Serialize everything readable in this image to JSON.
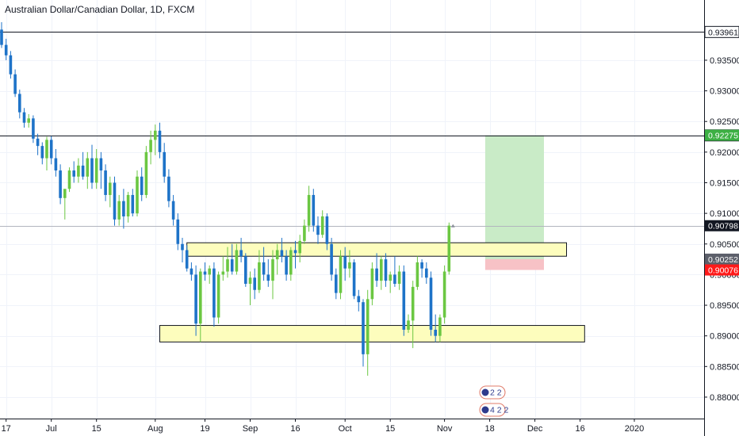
{
  "chart_data": {
    "type": "candlestick",
    "title": "Australian Dollar/Canadian Dollar, 1D, FXCM",
    "colors": {
      "up": "#6bc742",
      "down": "#1e73c8",
      "grid": "#f0f3fa",
      "axis": "#131722",
      "zone_fill": "#fdfdbd",
      "profit_fill": "#c9ebc7",
      "loss_fill": "#f7c2c6",
      "price_line": "#b2b5be"
    },
    "ylim": [
      0.8765,
      0.9425
    ],
    "y_ticks": [
      "0.93500",
      "0.93000",
      "0.92500",
      "0.92000",
      "0.91500",
      "0.91000",
      "0.90500",
      "0.90000",
      "0.89500",
      "0.89000",
      "0.88500",
      "0.88000"
    ],
    "x_ticks": [
      {
        "label": "17",
        "idx": 1
      },
      {
        "label": "Jul",
        "idx": 11
      },
      {
        "label": "15",
        "idx": 21
      },
      {
        "label": "Aug",
        "idx": 34
      },
      {
        "label": "19",
        "idx": 45
      },
      {
        "label": "Sep",
        "idx": 55
      },
      {
        "label": "16",
        "idx": 65
      },
      {
        "label": "Oct",
        "idx": 76
      },
      {
        "label": "15",
        "idx": 86
      },
      {
        "label": "Nov",
        "idx": 98
      },
      {
        "label": "18",
        "idx": 108
      },
      {
        "label": "Dec",
        "idx": 118
      },
      {
        "label": "16",
        "idx": 128
      },
      {
        "label": "2020",
        "idx": 140
      }
    ],
    "candles": [
      [
        0.94,
        0.9412,
        0.937,
        0.9375
      ],
      [
        0.9375,
        0.9385,
        0.935,
        0.9358
      ],
      [
        0.9358,
        0.9365,
        0.932,
        0.9327
      ],
      [
        0.9327,
        0.9335,
        0.929,
        0.9295
      ],
      [
        0.9295,
        0.9302,
        0.9255,
        0.9265
      ],
      [
        0.9265,
        0.9272,
        0.924,
        0.9248
      ],
      [
        0.9248,
        0.9262,
        0.924,
        0.9255
      ],
      [
        0.9255,
        0.926,
        0.9215,
        0.9222
      ],
      [
        0.9222,
        0.923,
        0.9195,
        0.921
      ],
      [
        0.921,
        0.9216,
        0.918,
        0.919
      ],
      [
        0.919,
        0.9225,
        0.917,
        0.922
      ],
      [
        0.922,
        0.9226,
        0.918,
        0.919
      ],
      [
        0.919,
        0.9205,
        0.916,
        0.917
      ],
      [
        0.917,
        0.918,
        0.9115,
        0.9125
      ],
      [
        0.9125,
        0.9135,
        0.909,
        0.914
      ],
      [
        0.914,
        0.9175,
        0.9135,
        0.917
      ],
      [
        0.917,
        0.9185,
        0.915,
        0.916
      ],
      [
        0.916,
        0.919,
        0.915,
        0.9178
      ],
      [
        0.9178,
        0.92,
        0.9155,
        0.916
      ],
      [
        0.916,
        0.92,
        0.914,
        0.919
      ],
      [
        0.919,
        0.9212,
        0.914,
        0.915
      ],
      [
        0.915,
        0.9205,
        0.914,
        0.919
      ],
      [
        0.919,
        0.92,
        0.914,
        0.917
      ],
      [
        0.917,
        0.918,
        0.912,
        0.913
      ],
      [
        0.913,
        0.916,
        0.911,
        0.915
      ],
      [
        0.915,
        0.916,
        0.908,
        0.909
      ],
      [
        0.909,
        0.913,
        0.908,
        0.912
      ],
      [
        0.912,
        0.914,
        0.9075,
        0.9095
      ],
      [
        0.9095,
        0.9135,
        0.9085,
        0.913
      ],
      [
        0.913,
        0.914,
        0.9095,
        0.91
      ],
      [
        0.91,
        0.917,
        0.9095,
        0.916
      ],
      [
        0.916,
        0.9175,
        0.912,
        0.913
      ],
      [
        0.913,
        0.921,
        0.9125,
        0.92
      ],
      [
        0.92,
        0.9235,
        0.918,
        0.922
      ],
      [
        0.922,
        0.9245,
        0.9195,
        0.9235
      ],
      [
        0.9235,
        0.9248,
        0.919,
        0.92
      ],
      [
        0.92,
        0.9215,
        0.915,
        0.916
      ],
      [
        0.916,
        0.9172,
        0.911,
        0.912
      ],
      [
        0.912,
        0.913,
        0.908,
        0.909
      ],
      [
        0.909,
        0.91,
        0.904,
        0.905
      ],
      [
        0.905,
        0.906,
        0.902,
        0.904
      ],
      [
        0.904,
        0.9048,
        0.9005,
        0.901
      ],
      [
        0.901,
        0.902,
        0.899,
        0.9
      ],
      [
        0.9,
        0.9015,
        0.89,
        0.892
      ],
      [
        0.892,
        0.901,
        0.889,
        0.9005
      ],
      [
        0.9005,
        0.902,
        0.899,
        0.9
      ],
      [
        0.9,
        0.9015,
        0.8985,
        0.901
      ],
      [
        0.901,
        0.902,
        0.8915,
        0.893
      ],
      [
        0.893,
        0.9005,
        0.892,
        0.9
      ],
      [
        0.9,
        0.903,
        0.899,
        0.9005
      ],
      [
        0.9005,
        0.9045,
        0.8995,
        0.9025
      ],
      [
        0.9025,
        0.905,
        0.9,
        0.9005
      ],
      [
        0.9005,
        0.905,
        0.9,
        0.904
      ],
      [
        0.904,
        0.906,
        0.902,
        0.903
      ],
      [
        0.903,
        0.9035,
        0.898,
        0.8985
      ],
      [
        0.8985,
        0.9005,
        0.895,
        0.8995
      ],
      [
        0.8995,
        0.901,
        0.896,
        0.8975
      ],
      [
        0.8975,
        0.904,
        0.897,
        0.902
      ],
      [
        0.902,
        0.9045,
        0.899,
        0.9
      ],
      [
        0.9,
        0.9025,
        0.898,
        0.899
      ],
      [
        0.899,
        0.904,
        0.896,
        0.9025
      ],
      [
        0.9025,
        0.905,
        0.9,
        0.904
      ],
      [
        0.904,
        0.906,
        0.902,
        0.903
      ],
      [
        0.903,
        0.904,
        0.899,
        0.9
      ],
      [
        0.9,
        0.9045,
        0.899,
        0.904
      ],
      [
        0.904,
        0.9055,
        0.901,
        0.9035
      ],
      [
        0.9035,
        0.9065,
        0.902,
        0.9055
      ],
      [
        0.9055,
        0.909,
        0.905,
        0.908
      ],
      [
        0.908,
        0.9145,
        0.907,
        0.913
      ],
      [
        0.913,
        0.914,
        0.907,
        0.908
      ],
      [
        0.908,
        0.9095,
        0.905,
        0.9065
      ],
      [
        0.9065,
        0.9105,
        0.906,
        0.9095
      ],
      [
        0.9095,
        0.91,
        0.904,
        0.905
      ],
      [
        0.905,
        0.906,
        0.899,
        0.9
      ],
      [
        0.9,
        0.901,
        0.896,
        0.897
      ],
      [
        0.897,
        0.904,
        0.896,
        0.903
      ],
      [
        0.903,
        0.9045,
        0.899,
        0.901
      ],
      [
        0.901,
        0.904,
        0.8995,
        0.902
      ],
      [
        0.902,
        0.9025,
        0.896,
        0.8965
      ],
      [
        0.8965,
        0.8975,
        0.894,
        0.8955
      ],
      [
        0.8955,
        0.896,
        0.885,
        0.887
      ],
      [
        0.887,
        0.8975,
        0.8835,
        0.896
      ],
      [
        0.896,
        0.902,
        0.895,
        0.901
      ],
      [
        0.901,
        0.9035,
        0.898,
        0.899
      ],
      [
        0.899,
        0.903,
        0.8975,
        0.9025
      ],
      [
        0.9025,
        0.9035,
        0.898,
        0.899
      ],
      [
        0.899,
        0.9005,
        0.897,
        0.9
      ],
      [
        0.9,
        0.903,
        0.898,
        0.8985
      ],
      [
        0.8985,
        0.9015,
        0.8975,
        0.9005
      ],
      [
        0.9005,
        0.9015,
        0.89,
        0.891
      ],
      [
        0.891,
        0.8935,
        0.8905,
        0.8925
      ],
      [
        0.8925,
        0.899,
        0.888,
        0.898
      ],
      [
        0.898,
        0.903,
        0.8975,
        0.902
      ],
      [
        0.902,
        0.9025,
        0.8995,
        0.901
      ],
      [
        0.901,
        0.902,
        0.8985,
        0.8995
      ],
      [
        0.8995,
        0.9005,
        0.89,
        0.891
      ],
      [
        0.891,
        0.8935,
        0.889,
        0.89
      ],
      [
        0.89,
        0.8935,
        0.889,
        0.893
      ],
      [
        0.893,
        0.9015,
        0.892,
        0.9005
      ],
      [
        0.9005,
        0.9085,
        0.9,
        0.908
      ]
    ],
    "levels": [
      {
        "label": "0.93961",
        "value": 0.93961
      },
      {
        "label": "0.92273",
        "value": 0.92273
      }
    ],
    "current_price": {
      "label": "0.90798",
      "value": 0.90798
    },
    "zones": [
      {
        "x_from": 41,
        "x_to": 125,
        "y_top": 0.9052,
        "y_bottom": 0.903
      },
      {
        "x_from": 35,
        "x_to": 129,
        "y_top": 0.8917,
        "y_bottom": 0.889
      }
    ],
    "position": {
      "x_from": 107,
      "x_to": 120,
      "entry": 0.90252,
      "target": 0.92275,
      "stop": 0.90076,
      "entry_label": "0.90252",
      "target_label": "0.92275",
      "stop_label": "0.90076"
    },
    "event_badges": [
      {
        "text": "2 2"
      },
      {
        "text": "4 2 2"
      }
    ]
  }
}
